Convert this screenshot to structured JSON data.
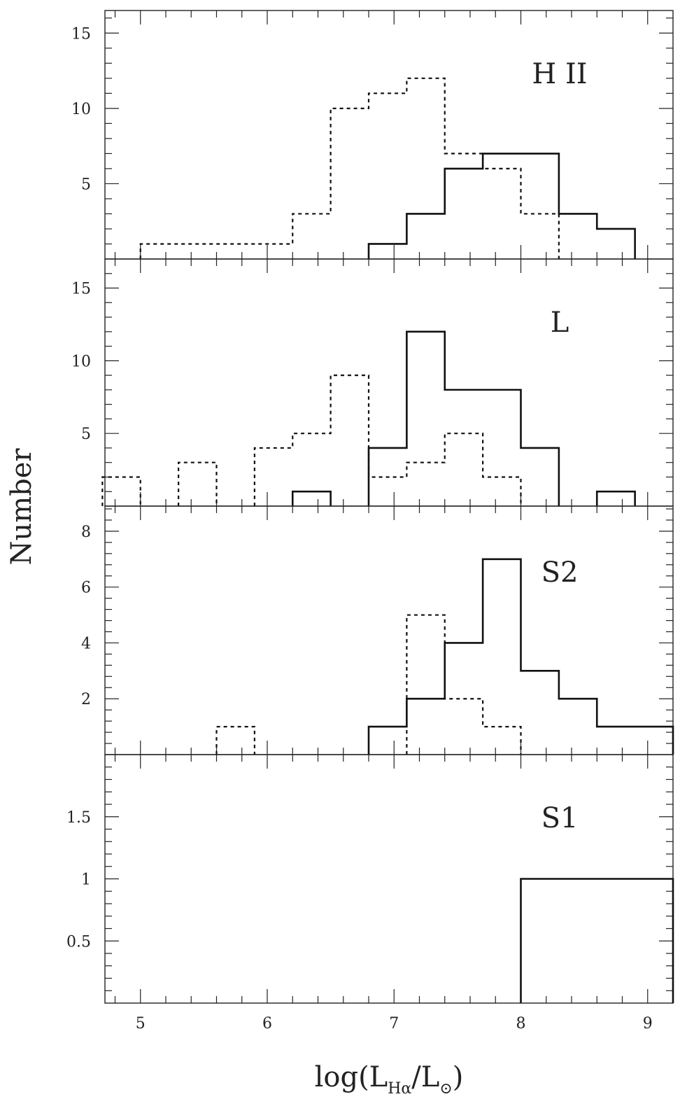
{
  "chart_data": {
    "type": "histogram",
    "xlabel": {
      "main": "log(L",
      "sub1": "Hα",
      "mid": "/L",
      "sub2": "⊙",
      "close": ")"
    },
    "ylabel": "Number",
    "xlim": [
      4.72,
      9.2
    ],
    "x_ticks": [
      "5",
      "6",
      "7",
      "8",
      "9"
    ],
    "bin_width": 0.3,
    "panels": [
      {
        "label": "H II",
        "ylim": [
          0,
          16.5
        ],
        "y_ticks": [
          5,
          10,
          15
        ],
        "y_tick_labels": [
          "5",
          "10",
          "15"
        ],
        "series": [
          {
            "style": "solid",
            "bins": [
              [
                6.8,
                1
              ],
              [
                7.1,
                3
              ],
              [
                7.4,
                6
              ],
              [
                7.7,
                7
              ],
              [
                8.0,
                7
              ],
              [
                8.3,
                3
              ],
              [
                8.6,
                2
              ]
            ]
          },
          {
            "style": "dotted",
            "bins": [
              [
                5.0,
                1
              ],
              [
                5.3,
                1
              ],
              [
                5.6,
                1
              ],
              [
                5.9,
                1
              ],
              [
                6.2,
                3
              ],
              [
                6.5,
                10
              ],
              [
                6.8,
                11
              ],
              [
                7.1,
                12
              ],
              [
                7.4,
                7
              ],
              [
                7.7,
                6
              ],
              [
                8.0,
                3
              ]
            ]
          }
        ]
      },
      {
        "label": "L",
        "ylim": [
          0,
          17
        ],
        "y_ticks": [
          5,
          10,
          15
        ],
        "y_tick_labels": [
          "5",
          "10",
          "15"
        ],
        "series": [
          {
            "style": "solid",
            "bins": [
              [
                6.2,
                1
              ],
              [
                6.8,
                4
              ],
              [
                7.1,
                12
              ],
              [
                7.4,
                8
              ],
              [
                7.7,
                8
              ],
              [
                8.0,
                4
              ],
              [
                8.6,
                1
              ]
            ]
          },
          {
            "style": "dotted",
            "bins": [
              [
                4.7,
                2
              ],
              [
                5.3,
                3
              ],
              [
                5.9,
                4
              ],
              [
                6.2,
                5
              ],
              [
                6.5,
                9
              ],
              [
                6.8,
                2
              ],
              [
                7.1,
                3
              ],
              [
                7.4,
                5
              ],
              [
                7.7,
                2
              ]
            ]
          }
        ]
      },
      {
        "label": "S2",
        "ylim": [
          0,
          8.9
        ],
        "y_ticks": [
          2,
          4,
          6,
          8
        ],
        "y_tick_labels": [
          "2",
          "4",
          "6",
          "8"
        ],
        "series": [
          {
            "style": "solid",
            "bins": [
              [
                6.8,
                1
              ],
              [
                7.1,
                2
              ],
              [
                7.4,
                4
              ],
              [
                7.7,
                7
              ],
              [
                8.0,
                3
              ],
              [
                8.3,
                2
              ],
              [
                8.6,
                1
              ],
              [
                8.9,
                1
              ]
            ]
          },
          {
            "style": "dotted",
            "bins": [
              [
                5.6,
                1
              ],
              [
                7.1,
                5
              ],
              [
                7.4,
                2
              ],
              [
                7.7,
                1
              ]
            ]
          }
        ]
      },
      {
        "label": "S1",
        "ylim": [
          0,
          2
        ],
        "y_ticks": [
          0.5,
          1,
          1.5
        ],
        "y_tick_labels": [
          "0.5",
          "1",
          "1.5"
        ],
        "series": [
          {
            "style": "solid",
            "bins": [
              [
                8.0,
                1
              ],
              [
                8.3,
                1
              ],
              [
                8.6,
                1
              ],
              [
                8.9,
                1
              ]
            ]
          }
        ]
      }
    ]
  }
}
